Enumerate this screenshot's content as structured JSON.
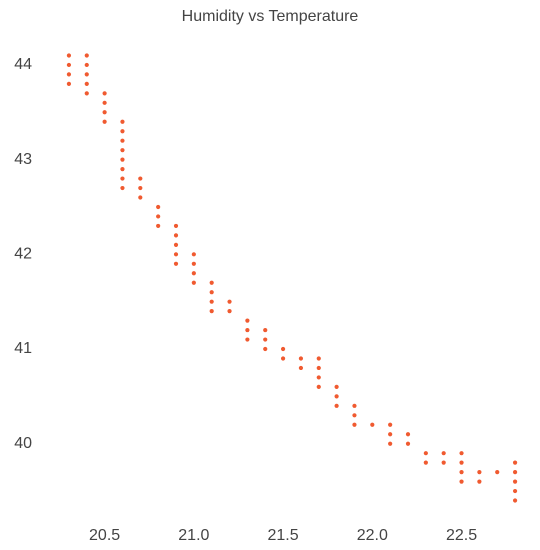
{
  "chart_data": {
    "type": "scatter",
    "title": "Humidity vs Temperature",
    "xlabel": "",
    "ylabel": "",
    "xlim": [
      20.25,
      22.85
    ],
    "ylim": [
      39.3,
      44.2
    ],
    "xticks": [
      20.5,
      21.0,
      21.5,
      22.0,
      22.5
    ],
    "xtick_labels": [
      "20.5",
      "21.0",
      "21.5",
      "22.0",
      "22.5"
    ],
    "yticks": [
      40,
      41,
      42,
      43,
      44
    ],
    "ytick_labels": [
      "40",
      "41",
      "42",
      "43",
      "44"
    ],
    "grid": false,
    "legend": "none",
    "marker_color": "#f05a30",
    "points": [
      [
        20.3,
        44.1
      ],
      [
        20.3,
        44.0
      ],
      [
        20.3,
        43.9
      ],
      [
        20.3,
        43.8
      ],
      [
        20.4,
        44.1
      ],
      [
        20.4,
        44.0
      ],
      [
        20.4,
        43.9
      ],
      [
        20.4,
        43.8
      ],
      [
        20.4,
        43.7
      ],
      [
        20.5,
        43.7
      ],
      [
        20.5,
        43.6
      ],
      [
        20.5,
        43.5
      ],
      [
        20.5,
        43.4
      ],
      [
        20.6,
        43.4
      ],
      [
        20.6,
        43.3
      ],
      [
        20.6,
        43.2
      ],
      [
        20.6,
        43.1
      ],
      [
        20.6,
        43.0
      ],
      [
        20.6,
        42.9
      ],
      [
        20.6,
        42.8
      ],
      [
        20.6,
        42.7
      ],
      [
        20.7,
        42.8
      ],
      [
        20.7,
        42.7
      ],
      [
        20.7,
        42.6
      ],
      [
        20.8,
        42.5
      ],
      [
        20.8,
        42.4
      ],
      [
        20.8,
        42.3
      ],
      [
        20.9,
        42.3
      ],
      [
        20.9,
        42.2
      ],
      [
        20.9,
        42.1
      ],
      [
        20.9,
        42.0
      ],
      [
        20.9,
        41.9
      ],
      [
        21.0,
        42.0
      ],
      [
        21.0,
        41.9
      ],
      [
        21.0,
        41.8
      ],
      [
        21.0,
        41.7
      ],
      [
        21.1,
        41.7
      ],
      [
        21.1,
        41.6
      ],
      [
        21.1,
        41.5
      ],
      [
        21.1,
        41.4
      ],
      [
        21.2,
        41.5
      ],
      [
        21.2,
        41.4
      ],
      [
        21.3,
        41.3
      ],
      [
        21.3,
        41.2
      ],
      [
        21.3,
        41.1
      ],
      [
        21.4,
        41.2
      ],
      [
        21.4,
        41.1
      ],
      [
        21.4,
        41.0
      ],
      [
        21.5,
        41.0
      ],
      [
        21.5,
        40.9
      ],
      [
        21.6,
        40.9
      ],
      [
        21.6,
        40.8
      ],
      [
        21.7,
        40.9
      ],
      [
        21.7,
        40.8
      ],
      [
        21.7,
        40.7
      ],
      [
        21.7,
        40.6
      ],
      [
        21.8,
        40.6
      ],
      [
        21.8,
        40.5
      ],
      [
        21.8,
        40.4
      ],
      [
        21.9,
        40.4
      ],
      [
        21.9,
        40.3
      ],
      [
        21.9,
        40.2
      ],
      [
        22.0,
        40.2
      ],
      [
        22.1,
        40.2
      ],
      [
        22.1,
        40.1
      ],
      [
        22.1,
        40.0
      ],
      [
        22.2,
        40.1
      ],
      [
        22.2,
        40.0
      ],
      [
        22.3,
        39.9
      ],
      [
        22.3,
        39.8
      ],
      [
        22.4,
        39.9
      ],
      [
        22.4,
        39.8
      ],
      [
        22.5,
        39.9
      ],
      [
        22.5,
        39.8
      ],
      [
        22.5,
        39.7
      ],
      [
        22.5,
        39.6
      ],
      [
        22.6,
        39.7
      ],
      [
        22.6,
        39.6
      ],
      [
        22.7,
        39.7
      ],
      [
        22.8,
        39.8
      ],
      [
        22.8,
        39.7
      ],
      [
        22.8,
        39.6
      ],
      [
        22.8,
        39.5
      ],
      [
        22.8,
        39.4
      ]
    ]
  }
}
